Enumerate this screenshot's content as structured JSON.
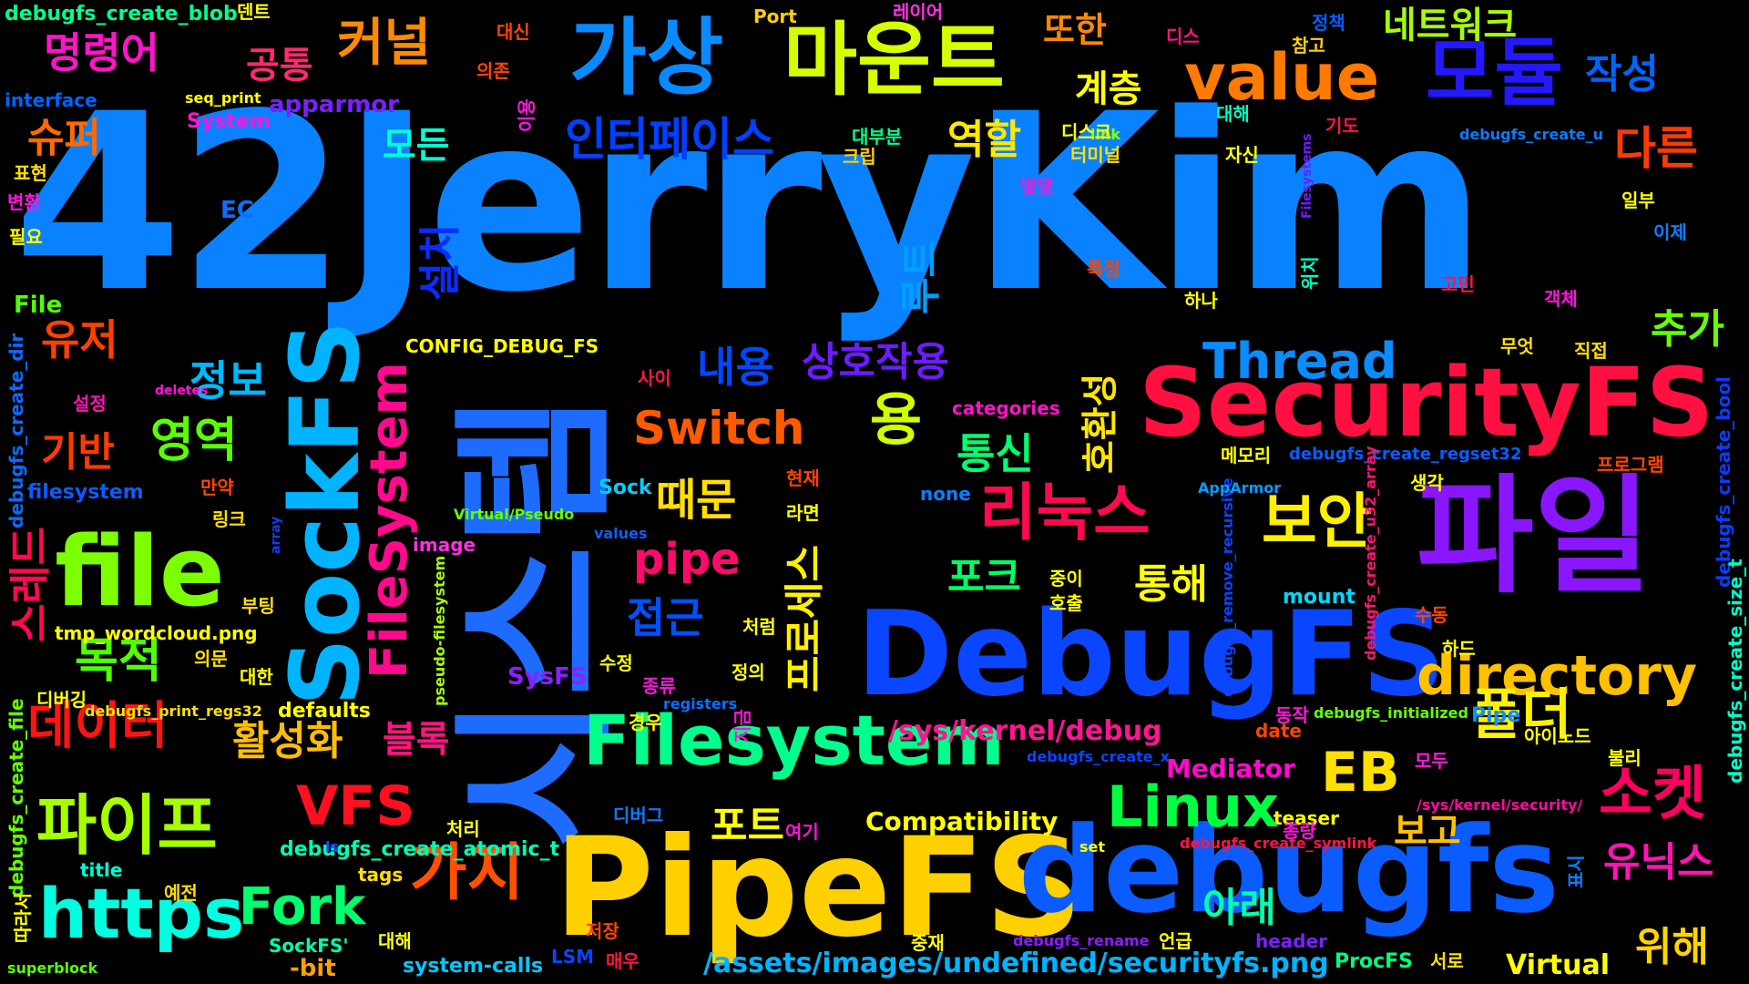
{
  "words": [
    {
      "text": "42JerryKim",
      "color": "#0a82ff"
    },
    {
      "text": "시스템",
      "color": "#1e6cff"
    },
    {
      "text": "PipeFS",
      "color": "#ffd000"
    },
    {
      "text": "debugfs",
      "color": "#0a5cff"
    },
    {
      "text": "DebugFS",
      "color": "#0a46ff"
    },
    {
      "text": "SecurityFS",
      "color": "#ff1040"
    },
    {
      "text": "파일",
      "color": "#8a16ff"
    },
    {
      "text": "SockFS",
      "color": "#00b4ff"
    },
    {
      "text": "file",
      "color": "#7cff00"
    },
    {
      "text": "https",
      "color": "#00ffe0"
    },
    {
      "text": "가상",
      "color": "#0a8aff"
    },
    {
      "text": "마운트",
      "color": "#d6ff00"
    },
    {
      "text": "모듈",
      "color": "#2418ff"
    },
    {
      "text": "value",
      "color": "#ff7a00"
    },
    {
      "text": "Filesystem",
      "color": "#00ff8c"
    },
    {
      "text": "directory",
      "color": "#ffc000"
    },
    {
      "text": "리눅스",
      "color": "#ff0a50"
    },
    {
      "text": "보안",
      "color": "#fff000"
    },
    {
      "text": "Linux",
      "color": "#00ff40"
    },
    {
      "text": "소켓",
      "color": "#ff0060"
    },
    {
      "text": "파이프",
      "color": "#a6ff00"
    },
    {
      "text": "가지",
      "color": "#ff5000"
    },
    {
      "text": "커널",
      "color": "#ff8a00"
    },
    {
      "text": "인터페이스",
      "color": "#0040ff"
    },
    {
      "text": "Thread",
      "color": "#0a8cff"
    },
    {
      "text": "FileSystem",
      "color": "#ff0a8c"
    },
    {
      "text": "데이터",
      "color": "#ff1414"
    },
    {
      "text": "VFS",
      "color": "#ff1020"
    },
    {
      "text": "Fork",
      "color": "#00ff6c"
    },
    {
      "text": "EB",
      "color": "#ffe000"
    },
    {
      "text": "폴더",
      "color": "#fff200"
    },
    {
      "text": "명령어",
      "color": "#ff14c8"
    },
    {
      "text": "유저",
      "color": "#ff4000"
    },
    {
      "text": "역할",
      "color": "#ffe800"
    },
    {
      "text": "Switch",
      "color": "#ff5a00"
    },
    {
      "text": "pipe",
      "color": "#ff0a6c"
    },
    {
      "text": "용",
      "color": "#d2ff00"
    },
    {
      "text": "다른",
      "color": "#ff3a00"
    },
    {
      "text": "작성",
      "color": "#0064ff"
    },
    {
      "text": "추가",
      "color": "#64ff00"
    },
    {
      "text": "네트워크",
      "color": "#a6ff00"
    },
    {
      "text": "공통",
      "color": "#ff2a70"
    },
    {
      "text": "또한",
      "color": "#ff8800"
    },
    {
      "text": "계층",
      "color": "#ffff00"
    },
    {
      "text": "슈퍼",
      "color": "#ff6a00"
    },
    {
      "text": "모든",
      "color": "#00ffd6"
    },
    {
      "text": "목적",
      "color": "#50ff00"
    },
    {
      "text": "영역",
      "color": "#5aff00"
    },
    {
      "text": "정보",
      "color": "#00b8ff"
    },
    {
      "text": "기반",
      "color": "#ff3a00"
    },
    {
      "text": "내용",
      "color": "#0048ff"
    },
    {
      "text": "상호작용",
      "color": "#6c1cff"
    },
    {
      "text": "통신",
      "color": "#00ff70"
    },
    {
      "text": "때문",
      "color": "#ffe000"
    },
    {
      "text": "접근",
      "color": "#0050ff"
    },
    {
      "text": "포크",
      "color": "#00ff64"
    },
    {
      "text": "통해",
      "color": "#ffff00"
    },
    {
      "text": "활성화",
      "color": "#ffbe00"
    },
    {
      "text": "블록",
      "color": "#ff1482"
    },
    {
      "text": "포트",
      "color": "#ffff00"
    },
    {
      "text": "보고",
      "color": "#ffc000"
    },
    {
      "text": "아래",
      "color": "#00ffb0"
    },
    {
      "text": "유닉스",
      "color": "#ff14b4"
    },
    {
      "text": "위해",
      "color": "#ffd400"
    },
    {
      "text": "루트",
      "color": "#00a0ff"
    },
    {
      "text": "설치",
      "color": "#0a2cff"
    },
    {
      "text": "호환성",
      "color": "#ffe600"
    },
    {
      "text": "프로세스",
      "color": "#fff000"
    },
    {
      "text": "스레드",
      "color": "#ff0a4c"
    },
    {
      "text": "/sys/kernel/debug",
      "color": "#ff1492"
    },
    {
      "text": "/assets/images/undefined/securityfs.png",
      "color": "#00b4ff"
    },
    {
      "text": "Compatibility",
      "color": "#ffff00"
    },
    {
      "text": "Mediator",
      "color": "#ff0acc"
    },
    {
      "text": "debugfs_create_atomic_t",
      "color": "#00ffb4"
    },
    {
      "text": "apparmor",
      "color": "#7a20ff"
    },
    {
      "text": "CONFIG_DEBUG_FS",
      "color": "#ffff00"
    },
    {
      "text": "tmp_wordcloud.png",
      "color": "#ffff00"
    },
    {
      "text": "debugfs_create_blob",
      "color": "#00ff8c"
    },
    {
      "text": "debugfs_create_file",
      "color": "#64ff00"
    },
    {
      "text": "debugfs_create_dir",
      "color": "#0a6aff"
    },
    {
      "text": "debugfs_create_regset32",
      "color": "#0a5cff"
    },
    {
      "text": "debugfs_create_bool",
      "color": "#0a3cff"
    },
    {
      "text": "debugfs_create_size_t",
      "color": "#00ffc8"
    },
    {
      "text": "debugfs_remove_recursive",
      "color": "#0a44ff"
    },
    {
      "text": "debugfs_create_u32_array",
      "color": "#ff1470"
    },
    {
      "text": "debugfs_create_symlink",
      "color": "#ff1444"
    },
    {
      "text": "debugfs_print_regs32",
      "color": "#ffe000"
    },
    {
      "text": "debugfs_initialized",
      "color": "#64ff00"
    },
    {
      "text": "debugfs_create_u",
      "color": "#0a7cff"
    },
    {
      "text": "debugfs_create_x",
      "color": "#0a44ff"
    },
    {
      "text": "debugfs_rename",
      "color": "#8a1cff"
    },
    {
      "text": "pseudo-filesystem",
      "color": "#a6ff00"
    },
    {
      "text": "Virtual/Pseudo",
      "color": "#64ff00"
    },
    {
      "text": "/sys/kernel/security/",
      "color": "#ff0aa0"
    },
    {
      "text": "system-calls",
      "color": "#00c8ff"
    },
    {
      "text": "superblock",
      "color": "#5aff00"
    },
    {
      "text": "Filesystems",
      "color": "#6c1cff"
    },
    {
      "text": "filesystem",
      "color": "#0a5cff"
    },
    {
      "text": "interface",
      "color": "#0064ff"
    },
    {
      "text": "seq_print",
      "color": "#ffff00"
    },
    {
      "text": "categories",
      "color": "#ff14c8"
    },
    {
      "text": "AppArmor",
      "color": "#0a9cff"
    },
    {
      "text": "registers",
      "color": "#0a70ff"
    },
    {
      "text": "defaults",
      "color": "#ffff00"
    },
    {
      "text": "Virtual",
      "color": "#ffff00"
    },
    {
      "text": "System",
      "color": "#ff14dc"
    },
    {
      "text": "ProcFS",
      "color": "#00ff7c"
    },
    {
      "text": "SysFS",
      "color": "#8a20ff"
    },
    {
      "text": "SockFS'",
      "color": "#00ffa8"
    },
    {
      "text": "mount",
      "color": "#00d8ff"
    },
    {
      "text": "image",
      "color": "#ff30e0"
    },
    {
      "text": "values",
      "color": "#0a60ff"
    },
    {
      "text": "header",
      "color": "#7a20ff"
    },
    {
      "text": "teaser",
      "color": "#ffff00"
    },
    {
      "text": "title",
      "color": "#00ffd4"
    },
    {
      "text": "tags",
      "color": "#ffe000"
    },
    {
      "text": "-bit",
      "color": "#ffa000"
    },
    {
      "text": "Sock",
      "color": "#00d0ff"
    },
    {
      "text": "Pipe",
      "color": "#0a90ff"
    },
    {
      "text": "Port",
      "color": "#ffd000"
    },
    {
      "text": "File",
      "color": "#50ff00"
    },
    {
      "text": "EC",
      "color": "#0a70ff"
    },
    {
      "text": "LSM",
      "color": "#0a44ff"
    },
    {
      "text": "none",
      "color": "#0a80ff"
    },
    {
      "text": "date",
      "color": "#ff4400"
    },
    {
      "text": "set",
      "color": "#ffff00"
    },
    {
      "text": "ls",
      "color": "#0a50ff"
    },
    {
      "text": "link",
      "color": "#8aff00"
    },
    {
      "text": "array",
      "color": "#0a40ff"
    },
    {
      "text": "deletes",
      "color": "#ff14dc"
    },
    {
      "text": "덴트",
      "color": "#ffff00"
    },
    {
      "text": "레이어",
      "color": "#ff30e0"
    },
    {
      "text": "대신",
      "color": "#ff4400"
    },
    {
      "text": "디스",
      "color": "#ff1480"
    },
    {
      "text": "정책",
      "color": "#0a5cff"
    },
    {
      "text": "참고",
      "color": "#ffd000"
    },
    {
      "text": "의존",
      "color": "#ff4400"
    },
    {
      "text": "이용",
      "color": "#ff14dc"
    },
    {
      "text": "대해",
      "color": "#00ffc0"
    },
    {
      "text": "기도",
      "color": "#ff1444"
    },
    {
      "text": "대부분",
      "color": "#00ff8c"
    },
    {
      "text": "크립",
      "color": "#ffd000"
    },
    {
      "text": "디스크",
      "color": "#ffff00"
    },
    {
      "text": "몇몇",
      "color": "#ff14dc"
    },
    {
      "text": "터미널",
      "color": "#ffe000"
    },
    {
      "text": "자신",
      "color": "#ffff00"
    },
    {
      "text": "표현",
      "color": "#ffe000"
    },
    {
      "text": "변환",
      "color": "#ff14dc"
    },
    {
      "text": "필요",
      "color": "#ffff00"
    },
    {
      "text": "일부",
      "color": "#ffff00"
    },
    {
      "text": "이제",
      "color": "#0a80ff"
    },
    {
      "text": "특정",
      "color": "#ff4400"
    },
    {
      "text": "하나",
      "color": "#ffff00"
    },
    {
      "text": "위치",
      "color": "#00ffc0"
    },
    {
      "text": "고민",
      "color": "#ff1444"
    },
    {
      "text": "객체",
      "color": "#ff14dc"
    },
    {
      "text": "무엇",
      "color": "#ffe000"
    },
    {
      "text": "직접",
      "color": "#ffe000"
    },
    {
      "text": "사이",
      "color": "#ff1444"
    },
    {
      "text": "설정",
      "color": "#ff14b4"
    },
    {
      "text": "메모리",
      "color": "#ffff00"
    },
    {
      "text": "프로그램",
      "color": "#ff4400"
    },
    {
      "text": "생각",
      "color": "#ffff00"
    },
    {
      "text": "현재",
      "color": "#ff4400"
    },
    {
      "text": "만약",
      "color": "#ff4400"
    },
    {
      "text": "라면",
      "color": "#ffff00"
    },
    {
      "text": "링크",
      "color": "#ffe000"
    },
    {
      "text": "중이",
      "color": "#ffff00"
    },
    {
      "text": "호출",
      "color": "#ffff00"
    },
    {
      "text": "부팅",
      "color": "#ffe000"
    },
    {
      "text": "처럼",
      "color": "#ffff00"
    },
    {
      "text": "의문",
      "color": "#ffe000"
    },
    {
      "text": "수정",
      "color": "#ffff00"
    },
    {
      "text": "종류",
      "color": "#ff14dc"
    },
    {
      "text": "정의",
      "color": "#ffff00"
    },
    {
      "text": "하드",
      "color": "#ffff00"
    },
    {
      "text": "수동",
      "color": "#ff4400"
    },
    {
      "text": "대한",
      "color": "#ffff00"
    },
    {
      "text": "디버깅",
      "color": "#ffff00"
    },
    {
      "text": "경우",
      "color": "#ffff00"
    },
    {
      "text": "지금",
      "color": "#ff14dc"
    },
    {
      "text": "동작",
      "color": "#ff14dc"
    },
    {
      "text": "아이노드",
      "color": "#ffff00"
    },
    {
      "text": "모두",
      "color": "#ff14dc"
    },
    {
      "text": "불리",
      "color": "#ffff00"
    },
    {
      "text": "디버그",
      "color": "#0a7cff"
    },
    {
      "text": "여기",
      "color": "#ff14dc"
    },
    {
      "text": "처리",
      "color": "#ffff00"
    },
    {
      "text": "총량",
      "color": "#ff14dc"
    },
    {
      "text": "예전",
      "color": "#ffe000"
    },
    {
      "text": "대해",
      "color": "#ffff00"
    },
    {
      "text": "중재",
      "color": "#ffff00"
    },
    {
      "text": "저장",
      "color": "#ff4400"
    },
    {
      "text": "언급",
      "color": "#ffff00"
    },
    {
      "text": "표시",
      "color": "#0a80ff"
    },
    {
      "text": "서로",
      "color": "#ffe000"
    },
    {
      "text": "매우",
      "color": "#ff1444"
    },
    {
      "text": "따라서",
      "color": "#ffff00"
    }
  ]
}
